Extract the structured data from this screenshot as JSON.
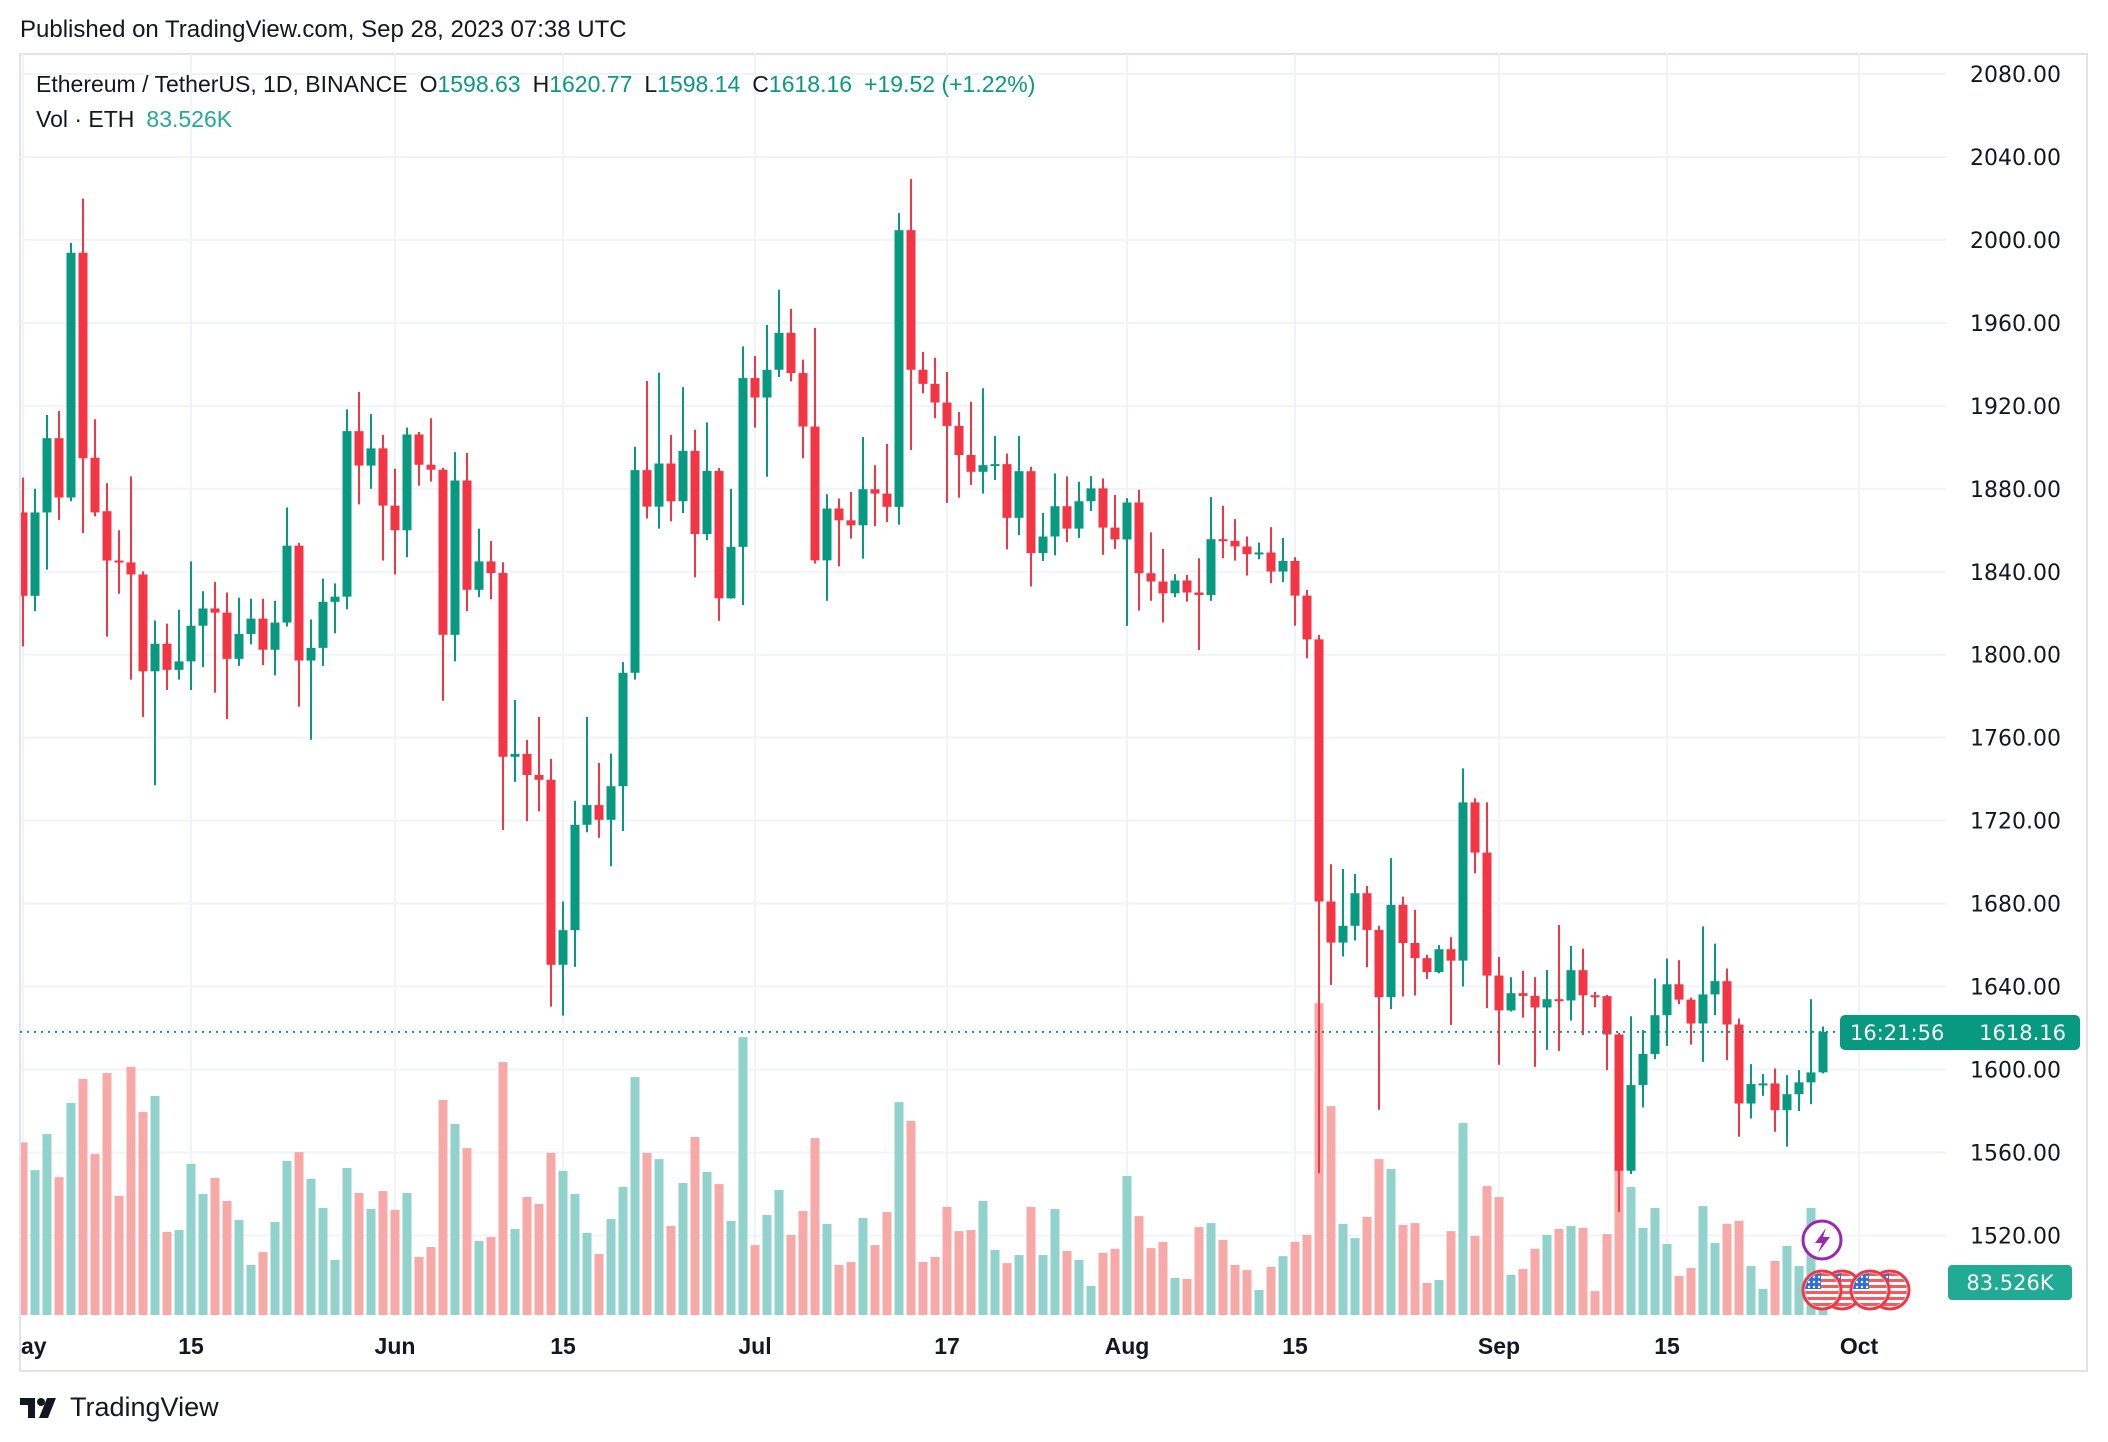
{
  "header": {
    "published": "Published on TradingView.com, Sep 28, 2023 07:38 UTC"
  },
  "legend": {
    "symbol": "Ethereum / TetherUS, 1D, BINANCE",
    "open_label": "O",
    "open": "1598.63",
    "high_label": "H",
    "high": "1620.77",
    "low_label": "L",
    "low": "1598.14",
    "close_label": "C",
    "close": "1618.16",
    "change": "+19.52 (+1.22%)",
    "vol_label": "Vol · ETH",
    "vol_value": "83.526K"
  },
  "price_label": {
    "price": "1618.16",
    "countdown": "16:21:56"
  },
  "volume_label": "83.526K",
  "footer": {
    "brand": "TradingView"
  },
  "colors": {
    "up": "#089981",
    "down": "#f23645",
    "vol_up": "#92d2cc",
    "vol_down": "#f7a9a7",
    "grid": "#f0f3fa",
    "event_purple": "#9c27b0"
  },
  "icons": {
    "event_markers": [
      "lightning-icon",
      "us-flag-icon",
      "us-flag-icon"
    ],
    "logo": "tradingview-logo-icon"
  },
  "chart_data": {
    "type": "candlestick",
    "title": "",
    "y_axis": {
      "ticks": [
        "2080.00",
        "2040.00",
        "2000.00",
        "1960.00",
        "1920.00",
        "1880.00",
        "1840.00",
        "1800.00",
        "1760.00",
        "1720.00",
        "1680.00",
        "1640.00",
        "1600.00",
        "1560.00",
        "1520.00"
      ],
      "range": [
        1500,
        2090
      ],
      "position": "right"
    },
    "x_axis": {
      "ticks": [
        {
          "label": "ay",
          "date": "2023-05-01"
        },
        {
          "label": "15",
          "date": "2023-05-15"
        },
        {
          "label": "Jun",
          "date": "2023-06-01"
        },
        {
          "label": "15",
          "date": "2023-06-15"
        },
        {
          "label": "Jul",
          "date": "2023-07-01"
        },
        {
          "label": "17",
          "date": "2023-07-17"
        },
        {
          "label": "Aug",
          "date": "2023-08-01"
        },
        {
          "label": "15",
          "date": "2023-08-15"
        },
        {
          "label": "Sep",
          "date": "2023-09-01"
        },
        {
          "label": "15",
          "date": "2023-09-15"
        },
        {
          "label": "Oct",
          "date": "2023-10-01"
        }
      ],
      "range": [
        "2023-05-01",
        "2023-10-04"
      ]
    },
    "grid": true,
    "last_price_line": 1618.16,
    "volume_unit": "K ETH",
    "candle_fields": [
      "date",
      "open",
      "high",
      "low",
      "close",
      "volume"
    ],
    "candles": [
      [
        "2023-05-01",
        1868.6,
        1885.4,
        1804.0,
        1828.4,
        642
      ],
      [
        "2023-05-02",
        1828.4,
        1880.0,
        1821.0,
        1868.6,
        539
      ],
      [
        "2023-05-03",
        1868.6,
        1915.6,
        1841.0,
        1904.4,
        673
      ],
      [
        "2023-05-04",
        1904.4,
        1917.5,
        1865.0,
        1875.8,
        513
      ],
      [
        "2023-05-05",
        1875.8,
        1998.6,
        1874.0,
        1993.8,
        789
      ],
      [
        "2023-05-06",
        1993.8,
        2019.9,
        1858.6,
        1894.7,
        878
      ],
      [
        "2023-05-07",
        1895.0,
        1913.5,
        1866.7,
        1868.6,
        599
      ],
      [
        "2023-05-08",
        1869.2,
        1882.7,
        1808.7,
        1845.4,
        900
      ],
      [
        "2023-05-09",
        1845.4,
        1860.0,
        1829.4,
        1844.8,
        443
      ],
      [
        "2023-05-10",
        1844.5,
        1886.0,
        1788.0,
        1838.7,
        923
      ],
      [
        "2023-05-11",
        1838.7,
        1840.2,
        1770.0,
        1792.0,
        755
      ],
      [
        "2023-05-12",
        1792.0,
        1816.5,
        1737.0,
        1805.3,
        815
      ],
      [
        "2023-05-13",
        1805.3,
        1815.0,
        1783.0,
        1792.7,
        309
      ],
      [
        "2023-05-14",
        1792.7,
        1821.7,
        1788.0,
        1796.8,
        316
      ],
      [
        "2023-05-15",
        1796.8,
        1845.0,
        1783.0,
        1814.0,
        562
      ],
      [
        "2023-05-16",
        1814.0,
        1830.6,
        1794.0,
        1822.3,
        450
      ],
      [
        "2023-05-17",
        1822.3,
        1835.0,
        1781.7,
        1820.3,
        510
      ],
      [
        "2023-05-18",
        1820.3,
        1830.0,
        1769.0,
        1798.0,
        424
      ],
      [
        "2023-05-19",
        1798.0,
        1827.5,
        1794.6,
        1810.0,
        353
      ],
      [
        "2023-05-20",
        1810.0,
        1827.0,
        1805.0,
        1817.4,
        186
      ],
      [
        "2023-05-21",
        1817.4,
        1827.0,
        1795.0,
        1802.4,
        234
      ],
      [
        "2023-05-22",
        1802.4,
        1826.0,
        1790.0,
        1815.5,
        346
      ],
      [
        "2023-05-23",
        1815.5,
        1871.0,
        1813.6,
        1852.6,
        573
      ],
      [
        "2023-05-24",
        1852.6,
        1854.0,
        1775.0,
        1797.2,
        606
      ],
      [
        "2023-05-25",
        1797.2,
        1817.0,
        1759.0,
        1803.3,
        506
      ],
      [
        "2023-05-26",
        1803.3,
        1836.7,
        1794.6,
        1825.5,
        398
      ],
      [
        "2023-05-27",
        1825.5,
        1834.4,
        1810.3,
        1828.0,
        205
      ],
      [
        "2023-05-28",
        1828.0,
        1918.3,
        1821.9,
        1907.8,
        547
      ],
      [
        "2023-05-29",
        1907.8,
        1926.7,
        1872.5,
        1891.2,
        454
      ],
      [
        "2023-05-30",
        1891.2,
        1916.0,
        1880.0,
        1899.5,
        394
      ],
      [
        "2023-05-31",
        1899.5,
        1906.0,
        1845.4,
        1871.9,
        461
      ],
      [
        "2023-06-01",
        1871.9,
        1889.7,
        1838.7,
        1860.0,
        391
      ],
      [
        "2023-06-02",
        1860.0,
        1909.5,
        1847.0,
        1906.2,
        454
      ],
      [
        "2023-06-03",
        1906.2,
        1907.4,
        1881.5,
        1891.6,
        216
      ],
      [
        "2023-06-04",
        1891.6,
        1914.0,
        1883.5,
        1889.2,
        253
      ],
      [
        "2023-06-05",
        1889.2,
        1890.0,
        1777.8,
        1809.6,
        800
      ],
      [
        "2023-06-06",
        1809.6,
        1897.7,
        1796.8,
        1884.0,
        711
      ],
      [
        "2023-06-07",
        1884.0,
        1897.3,
        1821.0,
        1831.3,
        621
      ],
      [
        "2023-06-08",
        1831.3,
        1860.8,
        1827.8,
        1845.0,
        275
      ],
      [
        "2023-06-09",
        1845.0,
        1854.8,
        1826.8,
        1839.4,
        290
      ],
      [
        "2023-06-10",
        1839.4,
        1844.6,
        1715.4,
        1750.8,
        941
      ],
      [
        "2023-06-11",
        1750.8,
        1778.2,
        1738.7,
        1752.2,
        320
      ],
      [
        "2023-06-12",
        1752.2,
        1758.9,
        1719.8,
        1742.0,
        439
      ],
      [
        "2023-06-13",
        1742.0,
        1770.0,
        1724.5,
        1739.7,
        413
      ],
      [
        "2023-06-14",
        1739.7,
        1749.8,
        1630.3,
        1650.5,
        603
      ],
      [
        "2023-06-15",
        1650.5,
        1681.0,
        1626.0,
        1667.2,
        536
      ],
      [
        "2023-06-16",
        1667.2,
        1729.6,
        1649.5,
        1718.0,
        450
      ],
      [
        "2023-06-17",
        1718.0,
        1770.0,
        1714.4,
        1727.5,
        305
      ],
      [
        "2023-06-18",
        1727.5,
        1747.8,
        1711.7,
        1720.4,
        227
      ],
      [
        "2023-06-19",
        1720.4,
        1752.3,
        1698.0,
        1736.6,
        357
      ],
      [
        "2023-06-20",
        1736.6,
        1796.4,
        1715.0,
        1791.3,
        476
      ],
      [
        "2023-06-21",
        1791.3,
        1900.3,
        1788.0,
        1889.0,
        885
      ],
      [
        "2023-06-22",
        1889.0,
        1932.0,
        1865.7,
        1871.4,
        603
      ],
      [
        "2023-06-23",
        1871.4,
        1936.0,
        1860.8,
        1892.2,
        580
      ],
      [
        "2023-06-24",
        1892.2,
        1906.0,
        1864.3,
        1874.0,
        331
      ],
      [
        "2023-06-25",
        1874.0,
        1929.0,
        1868.3,
        1898.3,
        491
      ],
      [
        "2023-06-26",
        1898.3,
        1908.5,
        1837.3,
        1858.2,
        662
      ],
      [
        "2023-06-27",
        1858.2,
        1912.0,
        1855.2,
        1888.6,
        532
      ],
      [
        "2023-06-28",
        1888.6,
        1890.0,
        1816.3,
        1827.2,
        487
      ],
      [
        "2023-06-29",
        1827.2,
        1880.0,
        1827.0,
        1852.0,
        350
      ],
      [
        "2023-06-30",
        1852.0,
        1948.7,
        1824.0,
        1933.4,
        1034
      ],
      [
        "2023-07-01",
        1933.4,
        1944.0,
        1909.5,
        1924.0,
        260
      ],
      [
        "2023-07-02",
        1924.0,
        1959.0,
        1885.8,
        1937.4,
        372
      ],
      [
        "2023-07-03",
        1937.4,
        1976.0,
        1933.9,
        1955.2,
        465
      ],
      [
        "2023-07-04",
        1955.2,
        1966.8,
        1931.8,
        1935.8,
        298
      ],
      [
        "2023-07-05",
        1935.8,
        1942.3,
        1894.7,
        1910.0,
        387
      ],
      [
        "2023-07-06",
        1910.0,
        1957.6,
        1844.0,
        1845.5,
        658
      ],
      [
        "2023-07-07",
        1845.5,
        1877.4,
        1826.0,
        1870.5,
        339
      ],
      [
        "2023-07-08",
        1870.5,
        1875.3,
        1842.6,
        1864.8,
        186
      ],
      [
        "2023-07-09",
        1864.8,
        1878.5,
        1856.0,
        1862.4,
        197
      ],
      [
        "2023-07-10",
        1862.4,
        1905.0,
        1846.3,
        1879.8,
        361
      ],
      [
        "2023-07-11",
        1879.8,
        1891.4,
        1862.0,
        1877.7,
        260
      ],
      [
        "2023-07-12",
        1877.7,
        1901.6,
        1864.0,
        1871.3,
        383
      ],
      [
        "2023-07-13",
        1871.3,
        2012.9,
        1862.7,
        2004.7,
        792
      ],
      [
        "2023-07-14",
        2004.7,
        2029.4,
        1898.7,
        1937.4,
        722
      ],
      [
        "2023-07-15",
        1937.4,
        1946.0,
        1926.0,
        1930.6,
        197
      ],
      [
        "2023-07-16",
        1930.6,
        1943.2,
        1914.0,
        1921.6,
        216
      ],
      [
        "2023-07-17",
        1921.6,
        1936.3,
        1873.2,
        1910.3,
        402
      ],
      [
        "2023-07-18",
        1910.3,
        1917.0,
        1875.7,
        1896.3,
        312
      ],
      [
        "2023-07-19",
        1896.3,
        1922.0,
        1881.8,
        1888.2,
        316
      ],
      [
        "2023-07-20",
        1888.2,
        1928.5,
        1877.7,
        1891.4,
        424
      ],
      [
        "2023-07-21",
        1891.4,
        1905.5,
        1884.2,
        1891.9,
        242
      ],
      [
        "2023-07-22",
        1891.9,
        1897.0,
        1850.8,
        1866.0,
        193
      ],
      [
        "2023-07-23",
        1866.0,
        1905.5,
        1857.6,
        1888.5,
        223
      ],
      [
        "2023-07-24",
        1888.5,
        1890.6,
        1832.9,
        1849.0,
        402
      ],
      [
        "2023-07-25",
        1849.0,
        1868.4,
        1845.2,
        1857.0,
        223
      ],
      [
        "2023-07-26",
        1857.0,
        1887.4,
        1847.9,
        1871.6,
        394
      ],
      [
        "2023-07-27",
        1871.6,
        1886.0,
        1854.3,
        1860.8,
        238
      ],
      [
        "2023-07-28",
        1860.8,
        1883.4,
        1856.3,
        1874.0,
        205
      ],
      [
        "2023-07-29",
        1874.0,
        1886.1,
        1869.3,
        1880.2,
        108
      ],
      [
        "2023-07-30",
        1880.2,
        1885.0,
        1848.2,
        1861.3,
        231
      ],
      [
        "2023-07-31",
        1861.3,
        1877.0,
        1851.0,
        1855.6,
        246
      ],
      [
        "2023-08-01",
        1855.6,
        1875.5,
        1813.9,
        1873.4,
        517
      ],
      [
        "2023-08-02",
        1873.4,
        1879.5,
        1821.3,
        1839.3,
        368
      ],
      [
        "2023-08-03",
        1839.3,
        1859.0,
        1826.0,
        1835.3,
        249
      ],
      [
        "2023-08-04",
        1835.3,
        1851.0,
        1815.5,
        1829.6,
        272
      ],
      [
        "2023-08-05",
        1829.6,
        1838.8,
        1827.7,
        1835.8,
        138
      ],
      [
        "2023-08-06",
        1835.8,
        1838.5,
        1825.6,
        1830.0,
        134
      ],
      [
        "2023-08-07",
        1830.0,
        1846.5,
        1802.3,
        1828.8,
        327
      ],
      [
        "2023-08-08",
        1828.8,
        1876.0,
        1826.0,
        1855.7,
        342
      ],
      [
        "2023-08-09",
        1855.7,
        1871.8,
        1846.5,
        1854.9,
        279
      ],
      [
        "2023-08-10",
        1854.9,
        1865.4,
        1845.4,
        1852.2,
        186
      ],
      [
        "2023-08-11",
        1852.2,
        1857.0,
        1838.2,
        1848.5,
        167
      ],
      [
        "2023-08-12",
        1848.5,
        1854.1,
        1846.0,
        1849.3,
        93
      ],
      [
        "2023-08-13",
        1849.3,
        1861.5,
        1834.5,
        1840.1,
        179
      ],
      [
        "2023-08-14",
        1840.1,
        1856.3,
        1835.0,
        1845.2,
        219
      ],
      [
        "2023-08-15",
        1845.2,
        1847.0,
        1814.0,
        1828.5,
        272
      ],
      [
        "2023-08-16",
        1828.5,
        1831.2,
        1798.3,
        1807.4,
        298
      ],
      [
        "2023-08-17",
        1807.4,
        1809.5,
        1550.0,
        1681.0,
        1160
      ],
      [
        "2023-08-18",
        1681.0,
        1699.0,
        1640.8,
        1661.2,
        777
      ],
      [
        "2023-08-19",
        1661.2,
        1696.7,
        1654.5,
        1669.3,
        339
      ],
      [
        "2023-08-20",
        1669.3,
        1694.3,
        1662.2,
        1685.0,
        286
      ],
      [
        "2023-08-21",
        1685.0,
        1688.5,
        1649.3,
        1667.3,
        365
      ],
      [
        "2023-08-22",
        1667.3,
        1669.3,
        1580.6,
        1634.9,
        580
      ],
      [
        "2023-08-23",
        1634.9,
        1701.9,
        1629.1,
        1679.4,
        543
      ],
      [
        "2023-08-24",
        1679.4,
        1683.4,
        1635.2,
        1661.0,
        335
      ],
      [
        "2023-08-25",
        1661.0,
        1677.0,
        1635.7,
        1653.7,
        342
      ],
      [
        "2023-08-26",
        1653.7,
        1655.3,
        1643.7,
        1647.0,
        119
      ],
      [
        "2023-08-27",
        1647.0,
        1660.0,
        1646.4,
        1658.0,
        130
      ],
      [
        "2023-08-28",
        1658.0,
        1663.8,
        1621.5,
        1652.5,
        312
      ],
      [
        "2023-08-29",
        1652.5,
        1745.2,
        1640.0,
        1728.8,
        714
      ],
      [
        "2023-08-30",
        1728.8,
        1730.8,
        1694.6,
        1704.6,
        294
      ],
      [
        "2023-08-31",
        1704.6,
        1728.8,
        1629.6,
        1645.3,
        480
      ],
      [
        "2023-09-01",
        1645.3,
        1654.2,
        1602.3,
        1628.5,
        439
      ],
      [
        "2023-09-02",
        1628.5,
        1644.5,
        1628.0,
        1636.8,
        149
      ],
      [
        "2023-09-03",
        1636.8,
        1647.6,
        1625.0,
        1635.5,
        171
      ],
      [
        "2023-09-04",
        1635.5,
        1644.5,
        1601.3,
        1629.9,
        246
      ],
      [
        "2023-09-05",
        1629.9,
        1648.0,
        1609.5,
        1633.9,
        298
      ],
      [
        "2023-09-06",
        1633.9,
        1669.7,
        1609.0,
        1633.3,
        320
      ],
      [
        "2023-09-07",
        1633.3,
        1659.6,
        1623.6,
        1647.9,
        331
      ],
      [
        "2023-09-08",
        1647.9,
        1658.3,
        1616.6,
        1635.8,
        324
      ],
      [
        "2023-09-09",
        1635.8,
        1637.4,
        1630.0,
        1635.4,
        89
      ],
      [
        "2023-09-10",
        1635.4,
        1636.0,
        1599.7,
        1616.9,
        301
      ],
      [
        "2023-09-11",
        1616.9,
        1617.7,
        1531.3,
        1551.2,
        540
      ],
      [
        "2023-09-12",
        1551.2,
        1625.7,
        1549.6,
        1592.5,
        476
      ],
      [
        "2023-09-13",
        1592.5,
        1619.0,
        1581.7,
        1607.5,
        324
      ],
      [
        "2023-09-14",
        1607.5,
        1643.9,
        1605.0,
        1626.2,
        398
      ],
      [
        "2023-09-15",
        1626.2,
        1653.5,
        1611.4,
        1641.1,
        264
      ],
      [
        "2023-09-16",
        1641.1,
        1652.7,
        1631.5,
        1633.7,
        145
      ],
      [
        "2023-09-17",
        1633.7,
        1634.7,
        1612.0,
        1622.2,
        175
      ],
      [
        "2023-09-18",
        1622.2,
        1669.0,
        1603.7,
        1636.2,
        405
      ],
      [
        "2023-09-19",
        1636.2,
        1660.7,
        1626.2,
        1642.6,
        268
      ],
      [
        "2023-09-20",
        1642.6,
        1648.7,
        1604.5,
        1621.7,
        339
      ],
      [
        "2023-09-21",
        1621.7,
        1624.6,
        1567.6,
        1583.6,
        350
      ],
      [
        "2023-09-22",
        1583.6,
        1602.6,
        1576.4,
        1593.0,
        182
      ],
      [
        "2023-09-23",
        1593.0,
        1597.8,
        1587.3,
        1593.3,
        97
      ],
      [
        "2023-09-24",
        1593.3,
        1600.5,
        1570.0,
        1580.4,
        201
      ],
      [
        "2023-09-25",
        1580.4,
        1597.3,
        1562.8,
        1588.1,
        257
      ],
      [
        "2023-09-26",
        1588.1,
        1599.7,
        1580.0,
        1593.8,
        182
      ],
      [
        "2023-09-27",
        1593.8,
        1633.9,
        1583.3,
        1598.6,
        398
      ],
      [
        "2023-09-28",
        1598.63,
        1620.77,
        1598.14,
        1618.16,
        83.526
      ]
    ]
  }
}
